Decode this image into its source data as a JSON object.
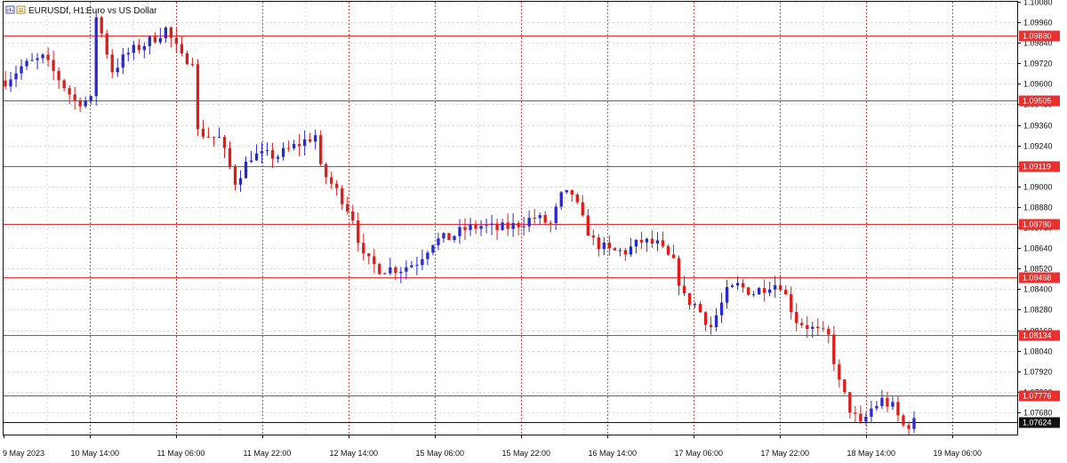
{
  "header": {
    "symbol": "EURUSDf, H1:",
    "description": "Euro vs US Dollar",
    "icon_left": "chart-window-icon",
    "icon_right": "chart-settings-icon"
  },
  "colors": {
    "bull": "#2828d2",
    "bear": "#e01b1b",
    "level": "#e8312f",
    "grid": "#d9d9d9",
    "separator": "#e04848",
    "last_price": "#111111",
    "frame": "#111111",
    "background": "#ffffff"
  },
  "chart_data": {
    "type": "candlestick",
    "timeframe": "H1",
    "y_range": [
      1.0755,
      1.1008
    ],
    "y_ticks": [
      "1.10080",
      "1.09960",
      "1.09840",
      "1.09720",
      "1.09600",
      "1.09480",
      "1.09360",
      "1.09240",
      "1.09120",
      "1.09000",
      "1.08880",
      "1.08760",
      "1.08640",
      "1.08520",
      "1.08400",
      "1.08280",
      "1.08160",
      "1.08040",
      "1.07920",
      "1.07800",
      "1.07680"
    ],
    "x_labels": [
      "9 May 2023",
      "10 May 14:00",
      "11 May 06:00",
      "11 May 22:00",
      "12 May 14:00",
      "15 May 06:00",
      "15 May 22:00",
      "16 May 14:00",
      "17 May 06:00",
      "17 May 22:00",
      "18 May 14:00",
      "19 May 06:00"
    ],
    "grid": true,
    "horizontal_levels": [
      "1.09880",
      "1.09505",
      "1.09119",
      "1.08780",
      "1.08468",
      "1.08134",
      "1.07776"
    ],
    "last_price": "1.07624",
    "anchors": [
      [
        0,
        1.0962
      ],
      [
        3,
        1.097
      ],
      [
        7,
        1.0975
      ],
      [
        10,
        1.0963
      ],
      [
        13,
        1.095
      ],
      [
        16,
        1.095
      ],
      [
        17,
        1.1
      ],
      [
        20,
        1.0968
      ],
      [
        23,
        1.0978
      ],
      [
        27,
        1.0985
      ],
      [
        30,
        1.0992
      ],
      [
        33,
        1.0975
      ],
      [
        35,
        1.0975
      ],
      [
        36,
        1.0932
      ],
      [
        40,
        1.0928
      ],
      [
        43,
        1.0903
      ],
      [
        46,
        1.0918
      ],
      [
        48,
        1.0918
      ],
      [
        51,
        1.0918
      ],
      [
        55,
        1.0925
      ],
      [
        58,
        1.093
      ],
      [
        59,
        1.091
      ],
      [
        63,
        1.0893
      ],
      [
        65,
        1.0882
      ],
      [
        67,
        1.0858
      ],
      [
        70,
        1.0852
      ],
      [
        74,
        1.0852
      ],
      [
        77,
        1.0856
      ],
      [
        80,
        1.0868
      ],
      [
        83,
        1.087
      ],
      [
        86,
        1.0875
      ],
      [
        89,
        1.0877
      ],
      [
        92,
        1.0875
      ],
      [
        95,
        1.0877
      ],
      [
        99,
        1.0882
      ],
      [
        102,
        1.0878
      ],
      [
        104,
        1.0894
      ],
      [
        106,
        1.0896
      ],
      [
        108,
        1.088
      ],
      [
        110,
        1.0868
      ],
      [
        113,
        1.0862
      ],
      [
        116,
        1.0862
      ],
      [
        119,
        1.0868
      ],
      [
        122,
        1.0866
      ],
      [
        125,
        1.0855
      ],
      [
        127,
        1.0835
      ],
      [
        129,
        1.0831
      ],
      [
        132,
        1.0818
      ],
      [
        135,
        1.0838
      ],
      [
        137,
        1.0842
      ],
      [
        140,
        1.0838
      ],
      [
        143,
        1.0843
      ],
      [
        145,
        1.0843
      ],
      [
        148,
        1.0822
      ],
      [
        152,
        1.0815
      ],
      [
        154,
        1.0812
      ],
      [
        156,
        1.0785
      ],
      [
        158,
        1.077
      ],
      [
        160,
        1.076
      ],
      [
        162,
        1.077
      ],
      [
        164,
        1.0775
      ],
      [
        166,
        1.0771
      ],
      [
        168,
        1.076
      ],
      [
        170,
        1.0762
      ]
    ]
  }
}
